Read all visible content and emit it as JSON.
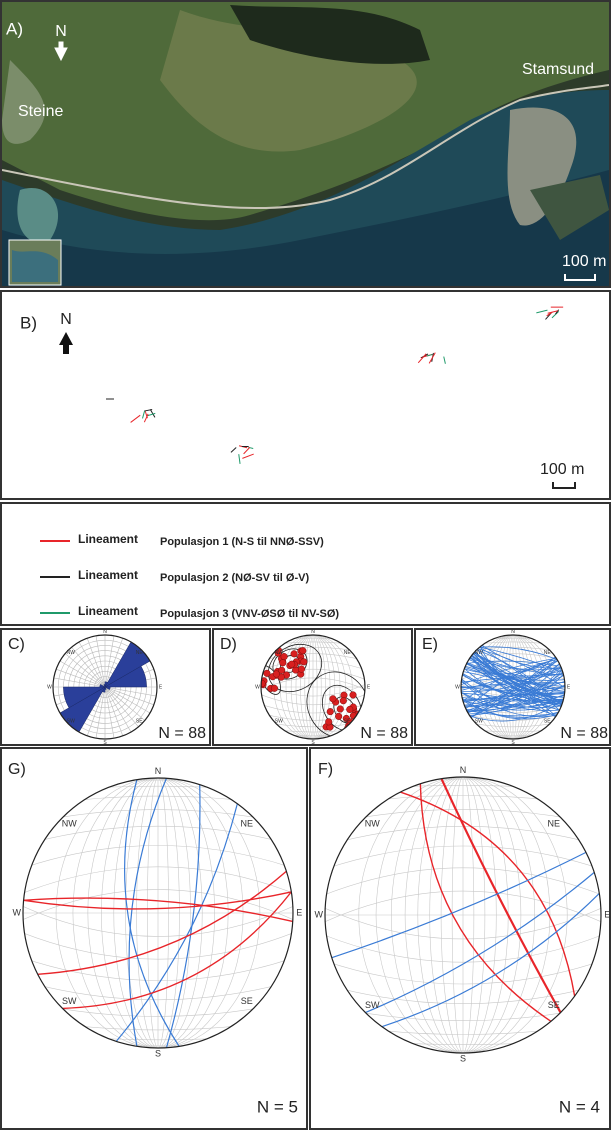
{
  "panels": {
    "a": {
      "label": "A)",
      "north": "N",
      "places": [
        "Steine",
        "Stamsund"
      ],
      "scale": "100 m"
    },
    "b": {
      "label": "B)",
      "north": "N",
      "scale": "100 m"
    },
    "c": {
      "label": "C)",
      "count": "N = 88"
    },
    "d": {
      "label": "D)",
      "count": "N = 88"
    },
    "e": {
      "label": "E)",
      "count": "N = 88"
    },
    "g": {
      "label": "G)",
      "count": "N = 5"
    },
    "f": {
      "label": "F)",
      "count": "N = 4"
    }
  },
  "compass": [
    "N",
    "NE",
    "E",
    "SE",
    "S",
    "SW",
    "W",
    "NW"
  ],
  "legend": [
    {
      "kind": "Lineament",
      "text": "Populasjon 1 (N-S til NNØ-SSV)",
      "color": "#e8252a"
    },
    {
      "kind": "Lineament",
      "text": "Populasjon 2 (NØ-SV til Ø-V)",
      "color": "#222222"
    },
    {
      "kind": "Lineament",
      "text": "Populasjon 3 (VNV-ØSØ til NV-SØ)",
      "color": "#1f9a6a"
    }
  ]
}
